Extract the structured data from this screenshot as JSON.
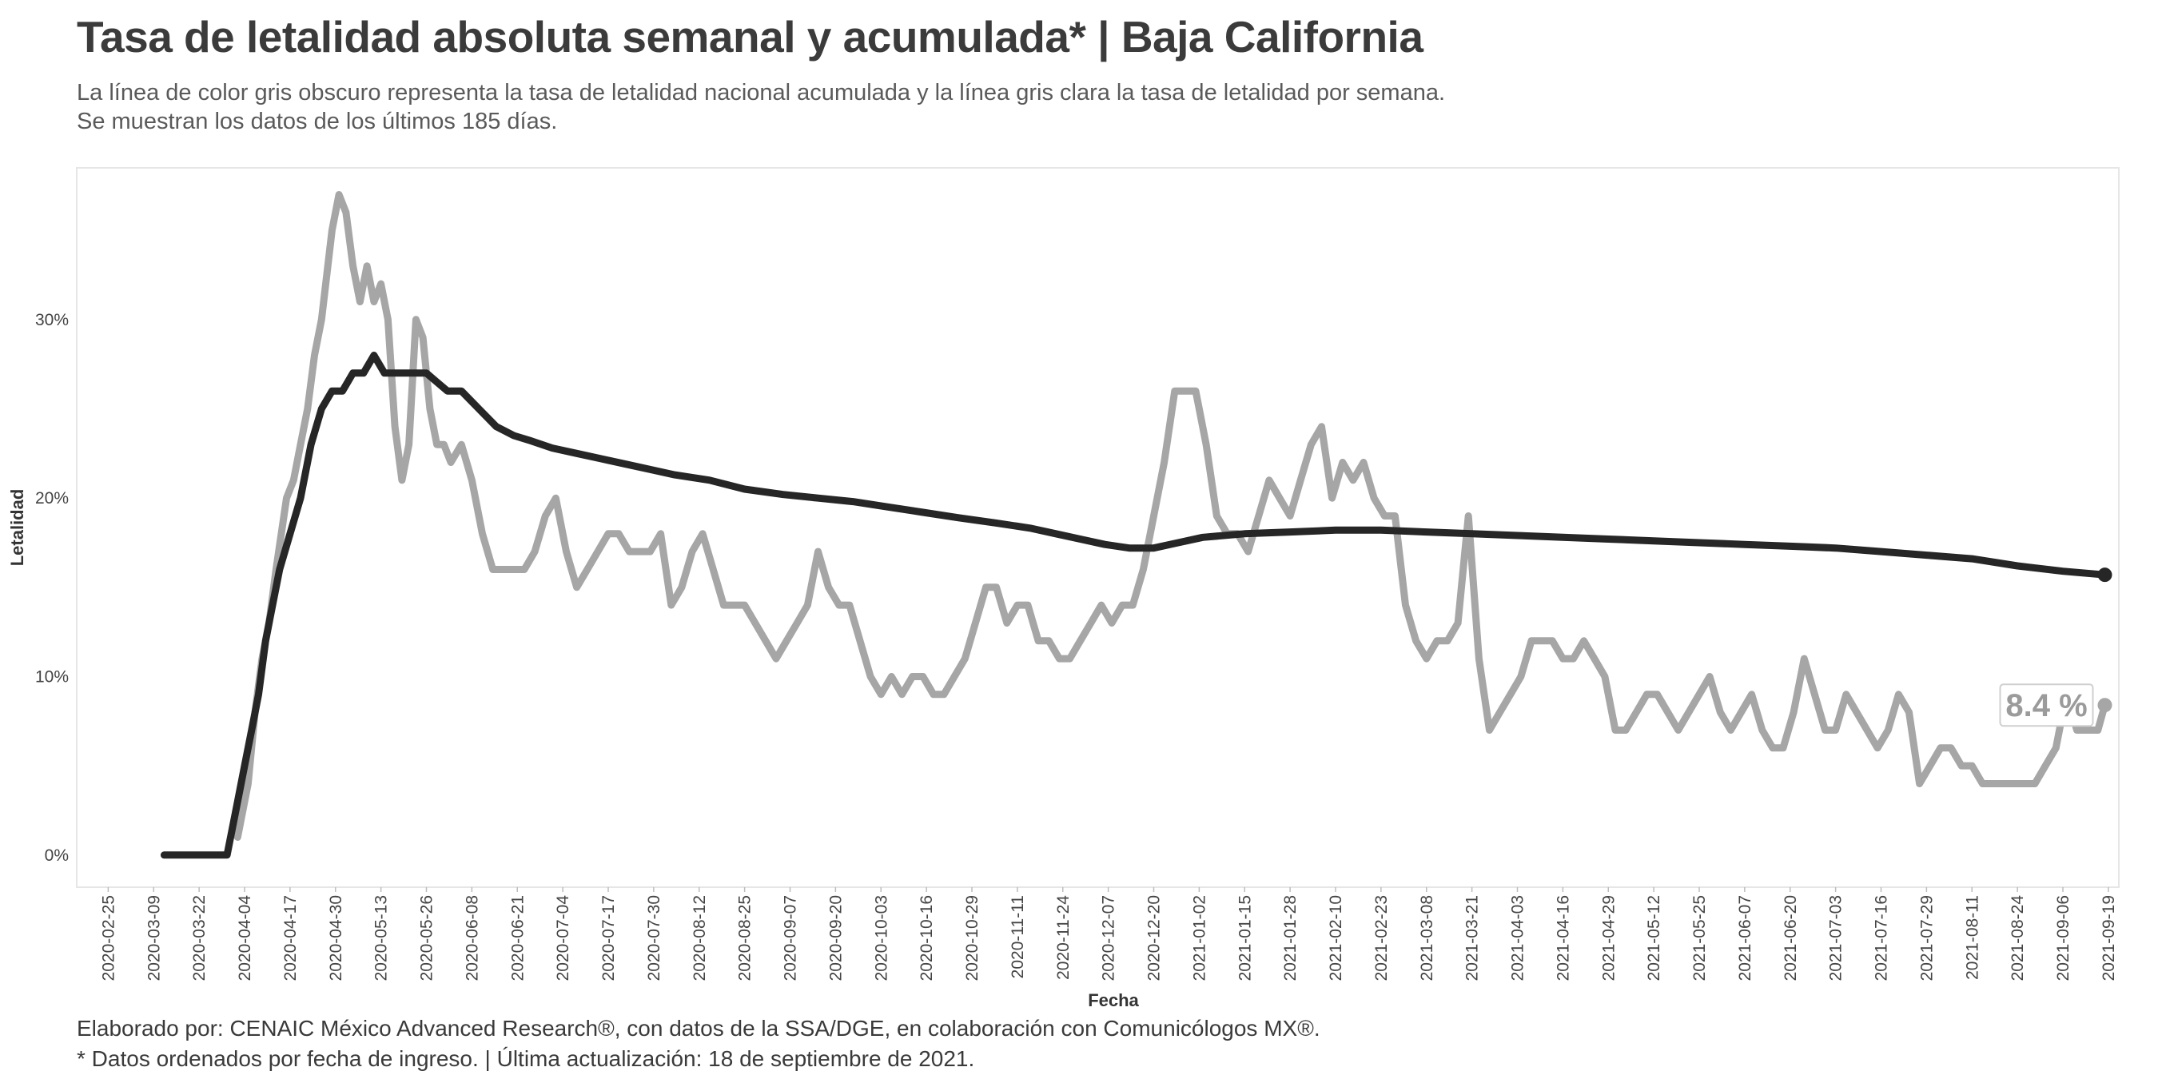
{
  "header": {
    "title": "Tasa de letalidad absoluta semanal y acumulada* | Baja California",
    "subtitle_line1": "La línea de color gris obscuro representa la tasa de letalidad nacional acumulada y la línea gris clara la tasa de letalidad por semana.",
    "subtitle_line2": "Se muestran los datos de los últimos 185 días."
  },
  "footer": {
    "credit": "Elaborado por: CENAIC México Advanced Research®, con datos de la SSA/DGE, en colaboración con Comunicólogos MX®.",
    "note": "* Datos ordenados por fecha de ingreso. | Última actualización: 18 de septiembre de 2021."
  },
  "chart_data": {
    "type": "line",
    "xlabel": "Fecha",
    "ylabel": "Letalidad",
    "ylim": [
      -0.018,
      0.385
    ],
    "xlim": [
      "2020-02-16",
      "2021-09-22"
    ],
    "y_ticks": [
      0,
      0.1,
      0.2,
      0.3
    ],
    "y_tick_labels": [
      "0%",
      "10%",
      "20%",
      "30%"
    ],
    "x_ticks": [
      "2020-02-25",
      "2020-03-09",
      "2020-03-22",
      "2020-04-04",
      "2020-04-17",
      "2020-04-30",
      "2020-05-13",
      "2020-05-26",
      "2020-06-08",
      "2020-06-21",
      "2020-07-04",
      "2020-07-17",
      "2020-07-30",
      "2020-08-12",
      "2020-08-25",
      "2020-09-07",
      "2020-09-20",
      "2020-10-03",
      "2020-10-16",
      "2020-10-29",
      "2020-11-11",
      "2020-11-24",
      "2020-12-07",
      "2020-12-20",
      "2021-01-02",
      "2021-01-15",
      "2021-01-28",
      "2021-02-10",
      "2021-02-23",
      "2021-03-08",
      "2021-03-21",
      "2021-04-03",
      "2021-04-16",
      "2021-04-29",
      "2021-05-12",
      "2021-05-25",
      "2021-06-07",
      "2021-06-20",
      "2021-07-03",
      "2021-07-16",
      "2021-07-29",
      "2021-08-11",
      "2021-08-24",
      "2021-09-06",
      "2021-09-19"
    ],
    "grid": false,
    "end_label": "8.4 %",
    "colors": {
      "weekly": "#a6a6a6",
      "cumulative": "#262626",
      "label": "#9b9b9b",
      "frame": "#e6e6e6"
    },
    "series": [
      {
        "key": "weekly",
        "x": [
          "2020-04-02",
          "2020-04-05",
          "2020-04-07",
          "2020-04-09",
          "2020-04-11",
          "2020-04-13",
          "2020-04-16",
          "2020-04-18",
          "2020-04-20",
          "2020-04-22",
          "2020-04-24",
          "2020-04-26",
          "2020-04-29",
          "2020-05-01",
          "2020-05-03",
          "2020-05-05",
          "2020-05-07",
          "2020-05-09",
          "2020-05-11",
          "2020-05-13",
          "2020-05-15",
          "2020-05-17",
          "2020-05-19",
          "2020-05-21",
          "2020-05-23",
          "2020-05-25",
          "2020-05-27",
          "2020-05-29",
          "2020-05-31",
          "2020-06-02",
          "2020-06-05",
          "2020-06-08",
          "2020-06-11",
          "2020-06-14",
          "2020-06-17",
          "2020-06-20",
          "2020-06-23",
          "2020-06-26",
          "2020-06-29",
          "2020-07-02",
          "2020-07-05",
          "2020-07-08",
          "2020-07-11",
          "2020-07-14",
          "2020-07-17",
          "2020-07-20",
          "2020-07-23",
          "2020-07-26",
          "2020-07-29",
          "2020-08-01",
          "2020-08-04",
          "2020-08-07",
          "2020-08-10",
          "2020-08-13",
          "2020-08-16",
          "2020-08-19",
          "2020-08-22",
          "2020-08-25",
          "2020-08-28",
          "2020-08-31",
          "2020-09-03",
          "2020-09-06",
          "2020-09-09",
          "2020-09-12",
          "2020-09-15",
          "2020-09-18",
          "2020-09-21",
          "2020-09-24",
          "2020-09-27",
          "2020-09-30",
          "2020-10-03",
          "2020-10-06",
          "2020-10-09",
          "2020-10-12",
          "2020-10-15",
          "2020-10-18",
          "2020-10-21",
          "2020-10-24",
          "2020-10-27",
          "2020-10-30",
          "2020-11-02",
          "2020-11-05",
          "2020-11-08",
          "2020-11-11",
          "2020-11-14",
          "2020-11-17",
          "2020-11-20",
          "2020-11-23",
          "2020-11-26",
          "2020-11-29",
          "2020-12-02",
          "2020-12-05",
          "2020-12-08",
          "2020-12-11",
          "2020-12-14",
          "2020-12-17",
          "2020-12-20",
          "2020-12-23",
          "2020-12-26",
          "2020-12-29",
          "2021-01-01",
          "2021-01-04",
          "2021-01-07",
          "2021-01-10",
          "2021-01-13",
          "2021-01-16",
          "2021-01-19",
          "2021-01-22",
          "2021-01-25",
          "2021-01-28",
          "2021-01-31",
          "2021-02-03",
          "2021-02-06",
          "2021-02-09",
          "2021-02-12",
          "2021-02-15",
          "2021-02-18",
          "2021-02-21",
          "2021-02-24",
          "2021-02-27",
          "2021-03-02",
          "2021-03-05",
          "2021-03-08",
          "2021-03-11",
          "2021-03-14",
          "2021-03-17",
          "2021-03-20",
          "2021-03-23",
          "2021-03-26",
          "2021-03-29",
          "2021-04-01",
          "2021-04-04",
          "2021-04-07",
          "2021-04-10",
          "2021-04-13",
          "2021-04-16",
          "2021-04-19",
          "2021-04-22",
          "2021-04-25",
          "2021-04-28",
          "2021-05-01",
          "2021-05-04",
          "2021-05-07",
          "2021-05-10",
          "2021-05-13",
          "2021-05-16",
          "2021-05-19",
          "2021-05-22",
          "2021-05-25",
          "2021-05-28",
          "2021-05-31",
          "2021-06-03",
          "2021-06-06",
          "2021-06-09",
          "2021-06-12",
          "2021-06-15",
          "2021-06-18",
          "2021-06-21",
          "2021-06-24",
          "2021-06-27",
          "2021-06-30",
          "2021-07-03",
          "2021-07-06",
          "2021-07-09",
          "2021-07-12",
          "2021-07-15",
          "2021-07-18",
          "2021-07-21",
          "2021-07-24",
          "2021-07-27",
          "2021-07-30",
          "2021-08-02",
          "2021-08-05",
          "2021-08-08",
          "2021-08-11",
          "2021-08-14",
          "2021-08-17",
          "2021-08-20",
          "2021-08-23",
          "2021-08-26",
          "2021-08-29",
          "2021-09-01",
          "2021-09-04",
          "2021-09-07",
          "2021-09-10",
          "2021-09-13",
          "2021-09-16",
          "2021-09-18"
        ],
        "y": [
          0.01,
          0.04,
          0.08,
          0.11,
          0.13,
          0.16,
          0.2,
          0.21,
          0.23,
          0.25,
          0.28,
          0.3,
          0.35,
          0.37,
          0.36,
          0.33,
          0.31,
          0.33,
          0.31,
          0.32,
          0.3,
          0.24,
          0.21,
          0.23,
          0.3,
          0.29,
          0.25,
          0.23,
          0.23,
          0.22,
          0.23,
          0.21,
          0.18,
          0.16,
          0.16,
          0.16,
          0.16,
          0.17,
          0.19,
          0.2,
          0.17,
          0.15,
          0.16,
          0.17,
          0.18,
          0.18,
          0.17,
          0.17,
          0.17,
          0.18,
          0.14,
          0.15,
          0.17,
          0.18,
          0.16,
          0.14,
          0.14,
          0.14,
          0.13,
          0.12,
          0.11,
          0.12,
          0.13,
          0.14,
          0.17,
          0.15,
          0.14,
          0.14,
          0.12,
          0.1,
          0.09,
          0.1,
          0.09,
          0.1,
          0.1,
          0.09,
          0.09,
          0.1,
          0.11,
          0.13,
          0.15,
          0.15,
          0.13,
          0.14,
          0.14,
          0.12,
          0.12,
          0.11,
          0.11,
          0.12,
          0.13,
          0.14,
          0.13,
          0.14,
          0.14,
          0.16,
          0.19,
          0.22,
          0.26,
          0.26,
          0.26,
          0.23,
          0.19,
          0.18,
          0.18,
          0.17,
          0.19,
          0.21,
          0.2,
          0.19,
          0.21,
          0.23,
          0.24,
          0.2,
          0.22,
          0.21,
          0.22,
          0.2,
          0.19,
          0.19,
          0.14,
          0.12,
          0.11,
          0.12,
          0.12,
          0.13,
          0.19,
          0.11,
          0.07,
          0.08,
          0.09,
          0.1,
          0.12,
          0.12,
          0.12,
          0.11,
          0.11,
          0.12,
          0.11,
          0.1,
          0.07,
          0.07,
          0.08,
          0.09,
          0.09,
          0.08,
          0.07,
          0.08,
          0.09,
          0.1,
          0.08,
          0.07,
          0.08,
          0.09,
          0.07,
          0.06,
          0.06,
          0.08,
          0.11,
          0.09,
          0.07,
          0.07,
          0.09,
          0.08,
          0.07,
          0.06,
          0.07,
          0.09,
          0.08,
          0.04,
          0.05,
          0.06,
          0.06,
          0.05,
          0.05,
          0.04,
          0.04,
          0.04,
          0.04,
          0.04,
          0.04,
          0.05,
          0.06,
          0.09,
          0.07,
          0.07,
          0.07,
          0.084
        ]
      },
      {
        "key": "cumulative",
        "x": [
          "2020-03-12",
          "2020-03-19",
          "2020-03-26",
          "2020-03-30",
          "2020-04-02",
          "2020-04-04",
          "2020-04-06",
          "2020-04-08",
          "2020-04-10",
          "2020-04-12",
          "2020-04-14",
          "2020-04-17",
          "2020-04-20",
          "2020-04-23",
          "2020-04-26",
          "2020-04-29",
          "2020-05-02",
          "2020-05-05",
          "2020-05-08",
          "2020-05-11",
          "2020-05-14",
          "2020-05-17",
          "2020-05-20",
          "2020-05-23",
          "2020-05-26",
          "2020-05-29",
          "2020-06-01",
          "2020-06-05",
          "2020-06-10",
          "2020-06-15",
          "2020-06-20",
          "2020-06-25",
          "2020-07-01",
          "2020-07-08",
          "2020-07-15",
          "2020-07-22",
          "2020-07-29",
          "2020-08-05",
          "2020-08-15",
          "2020-08-25",
          "2020-09-05",
          "2020-09-15",
          "2020-09-25",
          "2020-10-05",
          "2020-10-15",
          "2020-10-25",
          "2020-11-05",
          "2020-11-15",
          "2020-11-22",
          "2020-11-29",
          "2020-12-06",
          "2020-12-13",
          "2020-12-20",
          "2020-12-27",
          "2021-01-03",
          "2021-01-15",
          "2021-01-28",
          "2021-02-10",
          "2021-02-23",
          "2021-03-08",
          "2021-03-21",
          "2021-04-03",
          "2021-04-16",
          "2021-04-29",
          "2021-05-12",
          "2021-05-25",
          "2021-06-07",
          "2021-06-20",
          "2021-07-03",
          "2021-07-16",
          "2021-07-29",
          "2021-08-11",
          "2021-08-24",
          "2021-09-06",
          "2021-09-18"
        ],
        "y": [
          0,
          0,
          0,
          0,
          0.03,
          0.05,
          0.07,
          0.09,
          0.12,
          0.14,
          0.16,
          0.18,
          0.2,
          0.23,
          0.25,
          0.26,
          0.26,
          0.27,
          0.27,
          0.28,
          0.27,
          0.27,
          0.27,
          0.27,
          0.27,
          0.265,
          0.26,
          0.26,
          0.25,
          0.24,
          0.235,
          0.232,
          0.228,
          0.225,
          0.222,
          0.219,
          0.216,
          0.213,
          0.21,
          0.205,
          0.202,
          0.2,
          0.198,
          0.195,
          0.192,
          0.189,
          0.186,
          0.183,
          0.18,
          0.177,
          0.174,
          0.172,
          0.172,
          0.175,
          0.178,
          0.18,
          0.181,
          0.182,
          0.182,
          0.181,
          0.18,
          0.179,
          0.178,
          0.177,
          0.176,
          0.175,
          0.174,
          0.173,
          0.172,
          0.17,
          0.168,
          0.166,
          0.162,
          0.159,
          0.157
        ]
      }
    ]
  }
}
